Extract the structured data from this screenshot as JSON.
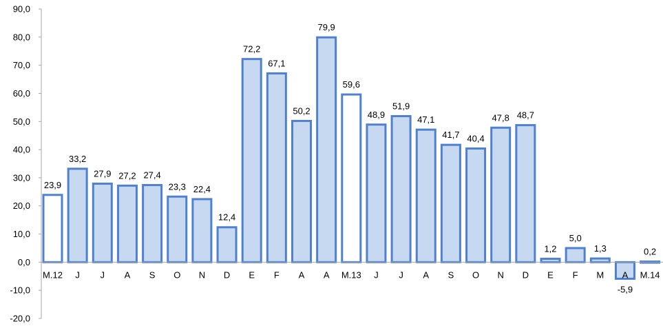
{
  "chart_data": {
    "type": "bar",
    "categories": [
      "M.12",
      "J",
      "J",
      "A",
      "S",
      "O",
      "N",
      "D",
      "E",
      "F",
      "A",
      "A",
      "M.13",
      "J",
      "J",
      "A",
      "S",
      "O",
      "N",
      "D",
      "E",
      "F",
      "M",
      "A",
      "M.14"
    ],
    "values": [
      23.9,
      33.2,
      27.9,
      27.2,
      27.4,
      23.3,
      22.4,
      12.4,
      72.2,
      67.1,
      50.2,
      79.9,
      59.6,
      48.9,
      51.9,
      47.1,
      41.7,
      40.4,
      47.8,
      48.7,
      1.2,
      5.0,
      1.3,
      -5.9,
      0.2
    ],
    "data_labels": [
      "23,9",
      "33,2",
      "27,9",
      "27,2",
      "27,4",
      "23,3",
      "22,4",
      "12,4",
      "72,2",
      "67,1",
      "50,2",
      "79,9",
      "59,6",
      "48,9",
      "51,9",
      "47,1",
      "41,7",
      "40,4",
      "47,8",
      "48,7",
      "1,2",
      "5,0",
      "1,3",
      "-5,9",
      "0,2"
    ],
    "highlighted": [
      true,
      false,
      false,
      false,
      false,
      false,
      false,
      false,
      false,
      false,
      false,
      false,
      true,
      false,
      false,
      false,
      false,
      false,
      false,
      false,
      false,
      false,
      false,
      false,
      false
    ],
    "ylim": [
      -20,
      90
    ],
    "yticks": [
      90,
      80,
      70,
      60,
      50,
      40,
      30,
      20,
      10,
      0,
      -10,
      -20
    ],
    "ytick_labels": [
      "90,0",
      "80,0",
      "70,0",
      "60,0",
      "50,0",
      "40,0",
      "30,0",
      "20,0",
      "10,0",
      "0,0",
      "-10,0",
      "-20,0"
    ],
    "title": "",
    "xlabel": "",
    "ylabel": "",
    "grid": false,
    "colors": {
      "bar_fill": "#c6d9f1",
      "bar_fill_highlight": "#ffffff",
      "bar_stroke": "#4f81d0",
      "axis": "#a6a6a6"
    }
  }
}
